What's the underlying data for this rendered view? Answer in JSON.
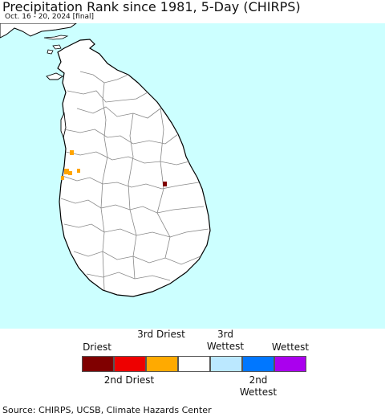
{
  "header": {
    "title": "Precipitation Rank since 1981, 5-Day (CHIRPS)",
    "subtitle": "Oct. 16 - 20, 2024 [final]"
  },
  "map": {
    "sea_color": "#ccffff",
    "land_color": "#ffffff",
    "border_color": "#000000",
    "district_border_color": "#999999",
    "marker_colors": {
      "driest": "#800000",
      "third_driest": "#ffa500"
    }
  },
  "legend": {
    "items": [
      {
        "top_label": "Driest",
        "bottom_label": "",
        "color": "#800000"
      },
      {
        "top_label": "",
        "bottom_label": "2nd Driest",
        "color": "#ee0000"
      },
      {
        "top_label": "3rd Driest",
        "bottom_label": "",
        "color": "#ffaa00"
      },
      {
        "top_label": "",
        "bottom_label": "",
        "color": "#ffffff"
      },
      {
        "top_label": "3rd Wettest",
        "bottom_label": "",
        "color": "#bbe8ff"
      },
      {
        "top_label": "",
        "bottom_label": "2nd Wettest",
        "color": "#0077ff"
      },
      {
        "top_label": "Wettest",
        "bottom_label": "",
        "color": "#aa00ee"
      }
    ]
  },
  "footer": {
    "source": "Source: CHIRPS, UCSB, Climate Hazards Center"
  }
}
